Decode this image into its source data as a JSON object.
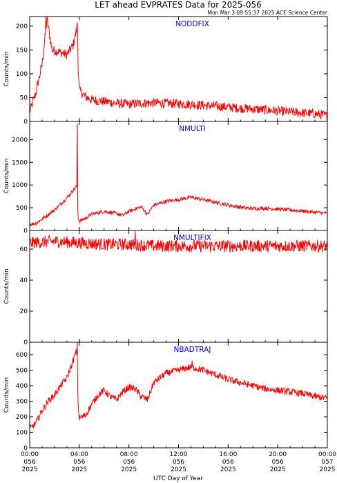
{
  "title": "LET ahead EVPRATES Data for 2025-056",
  "timestamp": "Mon Mar  3 09:55:37 2025 ACE Science Center",
  "colors": {
    "line": "#ff0000",
    "panel_title": "#0000ff",
    "axes": "#000000",
    "background": "#ffffff"
  },
  "chart_data": [
    {
      "type": "line",
      "title": "NODDFIX",
      "ylabel": "Counts/min",
      "ylim": [
        0,
        220
      ],
      "yticks": [
        0,
        50,
        100,
        150,
        200
      ],
      "ytick_labels": [
        "0",
        "50",
        "100",
        "150",
        "200"
      ],
      "xlim": [
        0,
        24
      ],
      "x": [
        0,
        0.5,
        1.0,
        1.4,
        1.8,
        2.5,
        3.0,
        3.5,
        3.85,
        3.9,
        4.0,
        4.5,
        5,
        6,
        7,
        8,
        9,
        10,
        11,
        12,
        13,
        14,
        15,
        16,
        17,
        18,
        19,
        20,
        21,
        22,
        23,
        24
      ],
      "y": [
        20,
        60,
        120,
        215,
        150,
        145,
        140,
        160,
        200,
        120,
        65,
        52,
        45,
        42,
        38,
        36,
        38,
        39,
        38,
        37,
        36,
        34,
        32,
        30,
        28,
        26,
        24,
        22,
        20,
        18,
        16,
        12
      ],
      "noise": 10,
      "spikes": [
        {
          "x": 1.3,
          "y": 225
        },
        {
          "x": 3.85,
          "y": 208
        }
      ]
    },
    {
      "type": "line",
      "title": "NMULTI",
      "ylabel": "Counts/min",
      "ylim": [
        0,
        2400
      ],
      "yticks": [
        0,
        500,
        1000,
        1500,
        2000
      ],
      "ytick_labels": [
        "0",
        "500",
        "1000",
        "1500",
        "2000"
      ],
      "xlim": [
        0,
        24
      ],
      "x": [
        0,
        0.5,
        1,
        1.5,
        2,
        2.5,
        3,
        3.5,
        3.8,
        3.9,
        4.0,
        4.5,
        5,
        6,
        7,
        7.5,
        8,
        9,
        9.5,
        10,
        10.5,
        11,
        12,
        13,
        14,
        15,
        16,
        17,
        18,
        19,
        20,
        21,
        22,
        23,
        24
      ],
      "y": [
        130,
        160,
        250,
        350,
        450,
        580,
        720,
        880,
        980,
        300,
        200,
        270,
        360,
        420,
        370,
        330,
        420,
        520,
        350,
        560,
        600,
        640,
        680,
        730,
        680,
        620,
        560,
        510,
        480,
        490,
        470,
        450,
        430,
        400,
        380
      ],
      "noise": 40,
      "spikes": [
        {
          "x": 3.85,
          "y": 2350
        }
      ]
    },
    {
      "type": "line",
      "title": "NMULTIFIX",
      "ylabel": "Counts/min",
      "ylim": [
        0,
        72
      ],
      "yticks": [
        0,
        20,
        40,
        60
      ],
      "ytick_labels": [
        "0",
        "20",
        "40",
        "60"
      ],
      "xlim": [
        0,
        24
      ],
      "x": [
        0,
        2,
        4,
        6,
        8,
        10,
        12,
        14,
        16,
        18,
        20,
        22,
        24
      ],
      "y": [
        64,
        65,
        64,
        63,
        63,
        62,
        62,
        62,
        62,
        62,
        62,
        62,
        62
      ],
      "noise": 4,
      "spikes": [
        {
          "x": 8.5,
          "y": 72
        }
      ]
    },
    {
      "type": "line",
      "title": "NBADTRAJ",
      "ylabel": "Counts/min",
      "ylim": [
        0,
        680
      ],
      "yticks": [
        0,
        100,
        200,
        300,
        400,
        500,
        600
      ],
      "ytick_labels": [
        "0",
        "100",
        "200",
        "300",
        "400",
        "500",
        "600"
      ],
      "xlim": [
        0,
        24
      ],
      "x": [
        0,
        0.5,
        1,
        1.5,
        2,
        2.5,
        3,
        3.5,
        3.8,
        3.9,
        4.0,
        4.5,
        5,
        5.5,
        6,
        6.5,
        7,
        7.5,
        8,
        8.5,
        9,
        9.5,
        10,
        11,
        12,
        13,
        14,
        15,
        16,
        17,
        18,
        19,
        20,
        21,
        22,
        23,
        24
      ],
      "y": [
        120,
        160,
        240,
        300,
        340,
        400,
        450,
        560,
        630,
        280,
        190,
        210,
        280,
        340,
        370,
        330,
        310,
        360,
        390,
        380,
        330,
        310,
        420,
        480,
        500,
        520,
        500,
        470,
        440,
        420,
        400,
        380,
        370,
        360,
        350,
        330,
        320
      ],
      "noise": 22,
      "spikes": [
        {
          "x": 3.85,
          "y": 680
        },
        {
          "x": 13.1,
          "y": 560
        }
      ]
    }
  ],
  "x_axis": {
    "ticks": [
      0,
      4,
      8,
      12,
      16,
      20,
      24
    ],
    "labels": [
      [
        "00:00",
        "056",
        "2025"
      ],
      [
        "04:00",
        "056",
        "2025"
      ],
      [
        "08:00",
        "056",
        "2025"
      ],
      [
        "12:00",
        "056",
        "2025"
      ],
      [
        "16:00",
        "056",
        "2025"
      ],
      [
        "20:00",
        "056",
        "2025"
      ],
      [
        "00:00",
        "057",
        "2025"
      ]
    ],
    "label": "UTC Day of Year"
  }
}
